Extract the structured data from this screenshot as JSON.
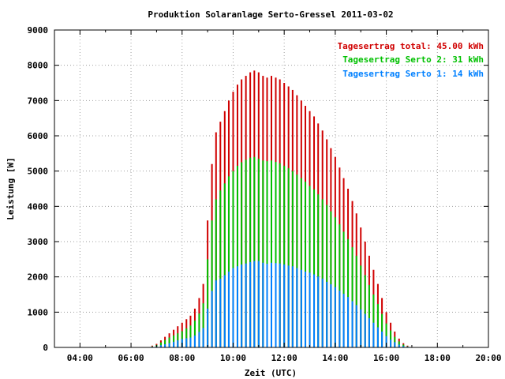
{
  "chart_data": {
    "type": "bar",
    "title": "Produktion Solaranlage Serto-Gressel 2011-03-02",
    "xlabel": "Zeit (UTC)",
    "ylabel": "Leistung [W]",
    "xlim": [
      3,
      20
    ],
    "ylim": [
      0,
      9000
    ],
    "x_ticks": [
      "04:00",
      "06:00",
      "08:00",
      "10:00",
      "12:00",
      "14:00",
      "16:00",
      "18:00",
      "20:00"
    ],
    "y_ticks": [
      "0",
      "1000",
      "2000",
      "3000",
      "4000",
      "5000",
      "6000",
      "7000",
      "8000",
      "9000"
    ],
    "grid": true,
    "legend_position": "top-right",
    "legend": [
      {
        "label": "Tagesertrag total: 45.00 kWh",
        "color": "#d00000"
      },
      {
        "label": "Tagesertrag Serto 2: 31 kWh",
        "color": "#00c000"
      },
      {
        "label": "Tagesertrag Serto 1: 14 kWh",
        "color": "#0080ff"
      }
    ],
    "series_colors": {
      "total": "#d00000",
      "serto2": "#00c000",
      "serto1": "#0080ff"
    },
    "x": [
      6.83,
      7.0,
      7.17,
      7.33,
      7.5,
      7.67,
      7.83,
      8.0,
      8.17,
      8.33,
      8.5,
      8.67,
      8.83,
      9.0,
      9.17,
      9.33,
      9.5,
      9.67,
      9.83,
      10.0,
      10.17,
      10.33,
      10.5,
      10.67,
      10.83,
      11.0,
      11.17,
      11.33,
      11.5,
      11.67,
      11.83,
      12.0,
      12.17,
      12.33,
      12.5,
      12.67,
      12.83,
      13.0,
      13.17,
      13.33,
      13.5,
      13.67,
      13.83,
      14.0,
      14.17,
      14.33,
      14.5,
      14.67,
      14.83,
      15.0,
      15.17,
      15.33,
      15.5,
      15.67,
      15.83,
      16.0,
      16.17,
      16.33,
      16.5,
      16.67,
      16.83,
      17.0
    ],
    "series": [
      {
        "key": "total",
        "values": [
          50,
          100,
          200,
          300,
          400,
          500,
          600,
          700,
          800,
          900,
          1100,
          1400,
          1800,
          3600,
          5200,
          6100,
          6400,
          6700,
          7000,
          7250,
          7450,
          7600,
          7700,
          7800,
          7850,
          7800,
          7700,
          7650,
          7700,
          7650,
          7600,
          7500,
          7400,
          7300,
          7150,
          7000,
          6850,
          6700,
          6550,
          6350,
          6150,
          5900,
          5650,
          5400,
          5100,
          4800,
          4500,
          4150,
          3800,
          3400,
          3000,
          2600,
          2200,
          1800,
          1400,
          1000,
          700,
          450,
          250,
          120,
          50,
          10
        ]
      },
      {
        "key": "serto2",
        "values": [
          30,
          70,
          140,
          210,
          280,
          340,
          400,
          460,
          540,
          620,
          760,
          960,
          1250,
          2500,
          3600,
          4200,
          4450,
          4650,
          4850,
          5000,
          5150,
          5250,
          5320,
          5380,
          5400,
          5350,
          5300,
          5280,
          5300,
          5260,
          5220,
          5150,
          5080,
          5000,
          4900,
          4800,
          4700,
          4580,
          4480,
          4340,
          4200,
          4040,
          3860,
          3690,
          3490,
          3280,
          3070,
          2840,
          2600,
          2320,
          2050,
          1770,
          1500,
          1230,
          950,
          680,
          480,
          300,
          170,
          80,
          30,
          5
        ]
      },
      {
        "key": "serto1",
        "values": [
          20,
          30,
          60,
          90,
          120,
          160,
          200,
          240,
          260,
          280,
          340,
          440,
          550,
          1100,
          1600,
          1900,
          1950,
          2050,
          2150,
          2250,
          2300,
          2350,
          2380,
          2420,
          2450,
          2450,
          2400,
          2370,
          2400,
          2390,
          2380,
          2350,
          2320,
          2300,
          2250,
          2200,
          2150,
          2120,
          2070,
          2010,
          1950,
          1860,
          1790,
          1710,
          1610,
          1520,
          1430,
          1310,
          1200,
          1080,
          950,
          830,
          700,
          570,
          450,
          320,
          220,
          150,
          80,
          40,
          20,
          5
        ]
      }
    ]
  }
}
